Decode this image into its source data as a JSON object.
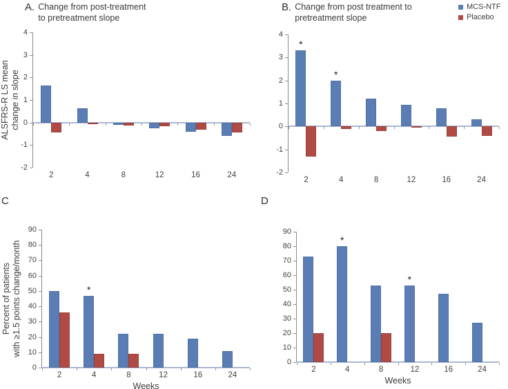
{
  "figure": {
    "legend": {
      "position": "top-right",
      "items": [
        {
          "label": "MCS-NTF",
          "color": "#5b7db6"
        },
        {
          "label": "Placebo",
          "color": "#b04a44"
        }
      ]
    }
  },
  "chart_data": [
    {
      "type": "bar",
      "panel_label": "A.",
      "title_lines": [
        "Change from post-treatment",
        "to pretreatment slope"
      ],
      "ylabel_lines": [
        "ALSFRS-R LS mean",
        "change in slope"
      ],
      "xlabel": "",
      "categories": [
        "2",
        "4",
        "8",
        "12",
        "16",
        "24"
      ],
      "ylim": [
        -2,
        4
      ],
      "ytick_step": 1,
      "grid": false,
      "series": [
        {
          "name": "MCS-NTF",
          "color": "#5b7db6",
          "values": [
            1.65,
            0.62,
            -0.1,
            -0.27,
            -0.4,
            -0.6
          ]
        },
        {
          "name": "Placebo",
          "color": "#b04a44",
          "values": [
            -0.45,
            -0.03,
            -0.13,
            -0.17,
            -0.33,
            -0.43
          ]
        }
      ],
      "annotations": []
    },
    {
      "type": "bar",
      "panel_label": "B.",
      "title_lines": [
        "Change from post treatment to",
        "pretreatment slope"
      ],
      "ylabel_lines": [],
      "xlabel": "",
      "categories": [
        "2",
        "4",
        "8",
        "12",
        "16",
        "24"
      ],
      "ylim": [
        -2,
        4
      ],
      "ytick_step": 1,
      "grid": false,
      "series": [
        {
          "name": "MCS-NTF",
          "color": "#5b7db6",
          "values": [
            3.3,
            2.0,
            1.2,
            0.95,
            0.8,
            0.3
          ]
        },
        {
          "name": "Placebo",
          "color": "#b04a44",
          "values": [
            -1.3,
            -0.1,
            -0.2,
            -0.05,
            -0.45,
            -0.4
          ]
        }
      ],
      "annotations": [
        {
          "series": 0,
          "category_index": 0,
          "text": "*"
        },
        {
          "series": 0,
          "category_index": 1,
          "text": "*"
        }
      ]
    },
    {
      "type": "bar",
      "panel_label": "C",
      "title_lines": [],
      "ylabel_lines": [
        "Percent of patients",
        "with ≥1.5 points change/month"
      ],
      "xlabel": "Weeks",
      "categories": [
        "2",
        "4",
        "8",
        "12",
        "16",
        "24"
      ],
      "ylim": [
        0,
        90
      ],
      "ytick_step": 10,
      "grid": false,
      "series": [
        {
          "name": "MCS-NTF",
          "color": "#5b7db6",
          "values": [
            50,
            47,
            22,
            22,
            19,
            11
          ]
        },
        {
          "name": "Placebo",
          "color": "#b04a44",
          "values": [
            36,
            9,
            9,
            null,
            null,
            null
          ]
        }
      ],
      "annotations": [
        {
          "series": 0,
          "category_index": 1,
          "text": "*"
        }
      ]
    },
    {
      "type": "bar",
      "panel_label": "D",
      "title_lines": [],
      "ylabel_lines": [],
      "xlabel": "Weeks",
      "categories": [
        "2",
        "4",
        "8",
        "12",
        "16",
        "24"
      ],
      "ylim": [
        0,
        90
      ],
      "ytick_step": 10,
      "grid": false,
      "series": [
        {
          "name": "MCS-NTF",
          "color": "#5b7db6",
          "values": [
            73,
            80,
            53,
            53,
            47,
            27
          ]
        },
        {
          "name": "Placebo",
          "color": "#b04a44",
          "values": [
            20,
            null,
            20,
            null,
            null,
            null
          ]
        }
      ],
      "annotations": [
        {
          "series": 0,
          "category_index": 1,
          "text": "*"
        },
        {
          "series": 0,
          "category_index": 3,
          "text": "*"
        }
      ]
    }
  ]
}
